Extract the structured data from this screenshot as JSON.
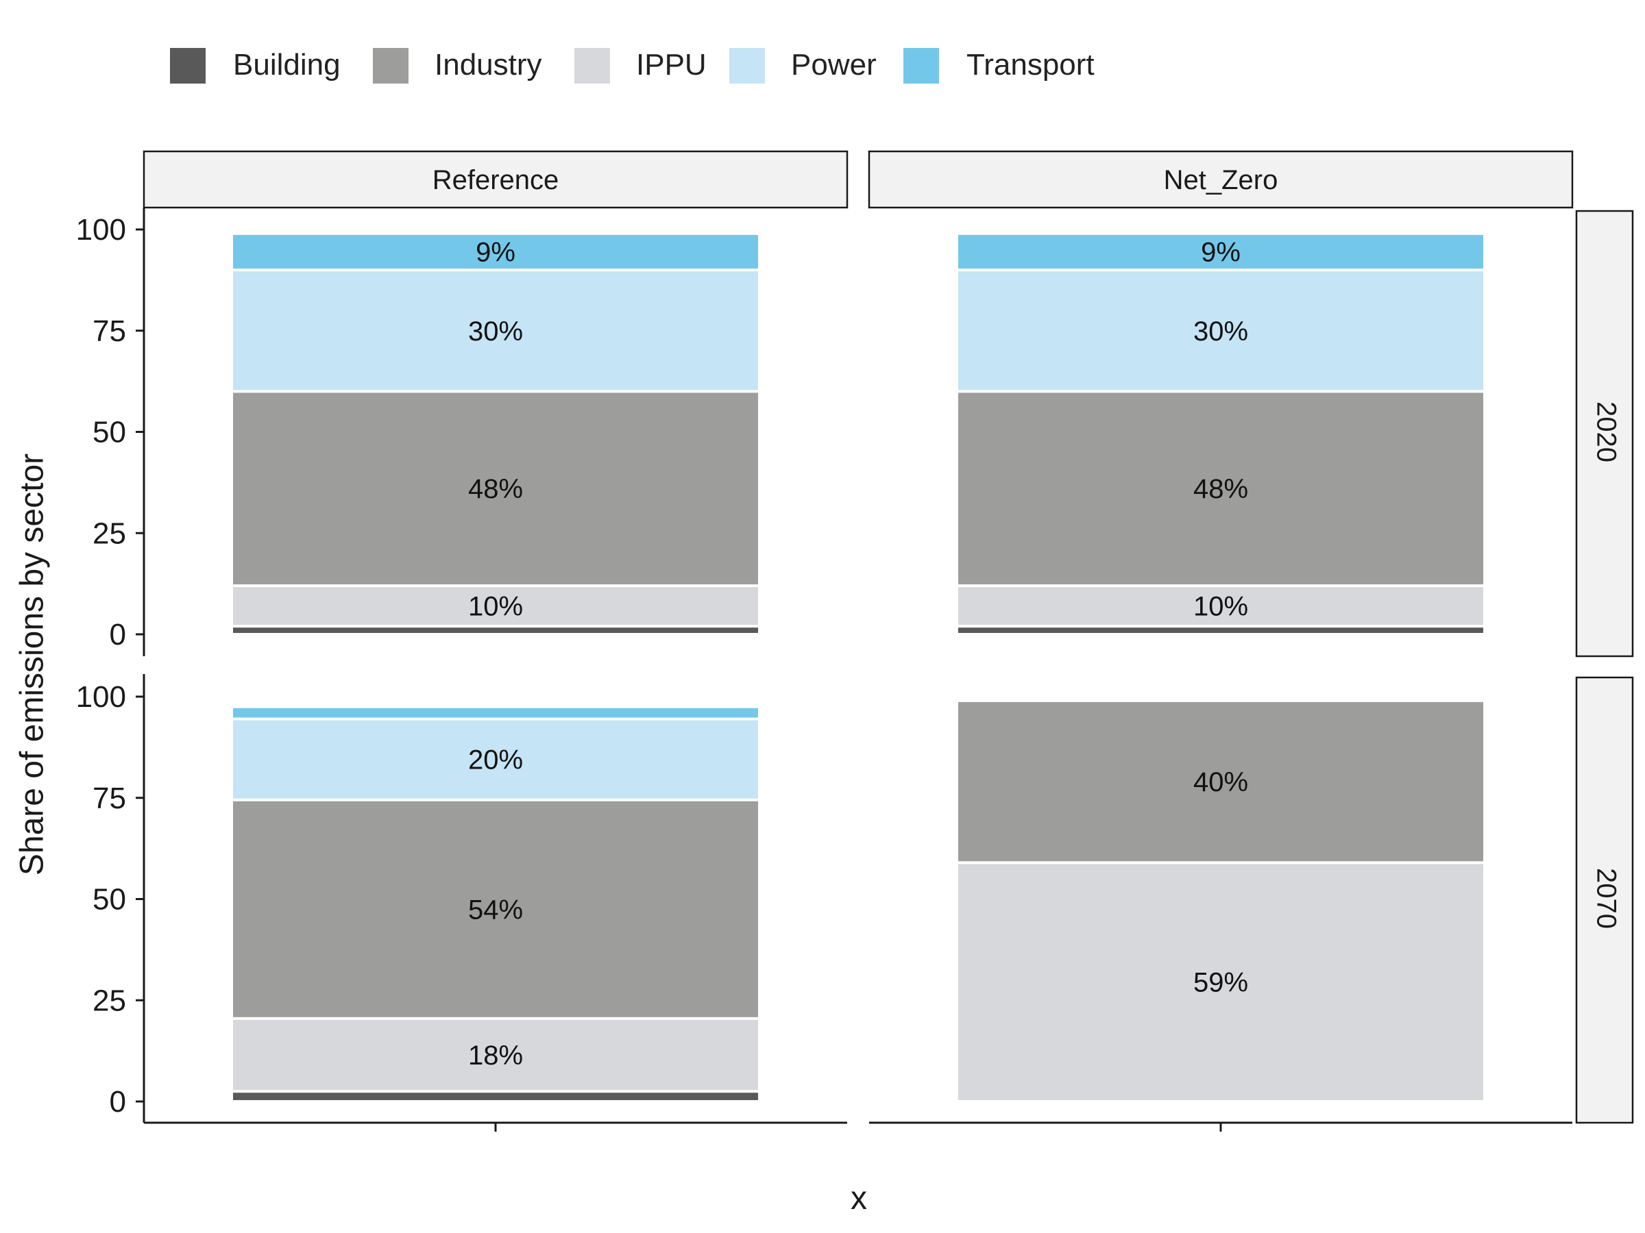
{
  "chart_data": {
    "type": "bar",
    "subtype": "stacked-100-faceted",
    "title": "",
    "xlabel": "x",
    "ylabel": "Share of emissions by sector",
    "ylim": [
      0,
      100
    ],
    "yticks": [
      "0",
      "25",
      "50",
      "75",
      "100"
    ],
    "legend": {
      "position": "top",
      "entries": [
        "Building",
        "Industry",
        "IPPU",
        "Power",
        "Transport"
      ]
    },
    "stack_order": [
      "Building",
      "IPPU",
      "Industry",
      "Power",
      "Transport"
    ],
    "colors": {
      "Building": "#595959",
      "Industry": "#9d9d9c",
      "IPPU": "#d7d8dc",
      "Power": "#c5e4f5",
      "Transport": "#73c8ea"
    },
    "columns": [
      "Reference",
      "Net_Zero"
    ],
    "rows": [
      "2020",
      "2070"
    ],
    "panels": [
      {
        "column": "Reference",
        "row": "2020",
        "segments": [
          {
            "sector": "Building",
            "value": 2,
            "label": ""
          },
          {
            "sector": "IPPU",
            "value": 10,
            "label": "10%"
          },
          {
            "sector": "Industry",
            "value": 48,
            "label": "48%"
          },
          {
            "sector": "Power",
            "value": 30,
            "label": "30%"
          },
          {
            "sector": "Transport",
            "value": 9,
            "label": "9%"
          }
        ]
      },
      {
        "column": "Net_Zero",
        "row": "2020",
        "segments": [
          {
            "sector": "Building",
            "value": 2,
            "label": ""
          },
          {
            "sector": "IPPU",
            "value": 10,
            "label": "10%"
          },
          {
            "sector": "Industry",
            "value": 48,
            "label": "48%"
          },
          {
            "sector": "Power",
            "value": 30,
            "label": "30%"
          },
          {
            "sector": "Transport",
            "value": 9,
            "label": "9%"
          }
        ]
      },
      {
        "column": "Reference",
        "row": "2070",
        "segments": [
          {
            "sector": "Building",
            "value": 2.5,
            "label": ""
          },
          {
            "sector": "IPPU",
            "value": 18,
            "label": "18%"
          },
          {
            "sector": "Industry",
            "value": 54,
            "label": "54%"
          },
          {
            "sector": "Power",
            "value": 20,
            "label": "20%"
          },
          {
            "sector": "Transport",
            "value": 3,
            "label": ""
          }
        ]
      },
      {
        "column": "Net_Zero",
        "row": "2070",
        "segments": [
          {
            "sector": "IPPU",
            "value": 59,
            "label": "59%"
          },
          {
            "sector": "Industry",
            "value": 40,
            "label": "40%"
          }
        ]
      }
    ]
  }
}
